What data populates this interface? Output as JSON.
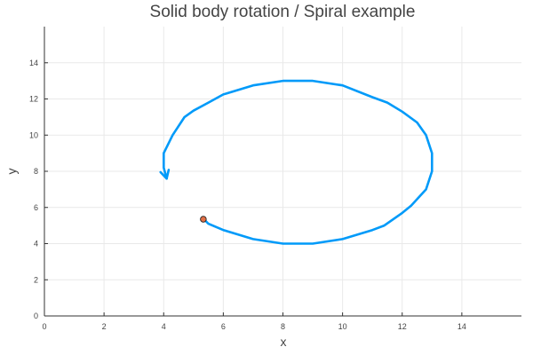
{
  "chart_data": {
    "type": "line",
    "title": "Solid body rotation / Spiral example",
    "xlabel": "x",
    "ylabel": "y",
    "xlim": [
      0,
      16
    ],
    "ylim": [
      0,
      16
    ],
    "xticks": [
      0,
      2,
      4,
      6,
      8,
      10,
      12,
      14
    ],
    "yticks": [
      0,
      2,
      4,
      6,
      8,
      10,
      12,
      14
    ],
    "grid": true,
    "series": [
      {
        "color": "#009af9",
        "x": [
          5.35,
          5.5,
          6.0,
          7.0,
          8.0,
          9.0,
          10.0,
          11.0,
          11.4,
          12.0,
          12.3,
          12.8,
          13.0,
          13.0,
          12.8,
          12.5,
          12.0,
          11.5,
          11.0,
          10.0,
          9.0,
          8.0,
          7.0,
          6.0,
          5.5,
          5.0,
          4.7,
          4.3,
          4.0,
          4.0,
          4.1
        ],
        "y": [
          5.35,
          5.1,
          4.75,
          4.25,
          4.0,
          4.0,
          4.25,
          4.75,
          5.0,
          5.7,
          6.1,
          7.0,
          8.0,
          9.0,
          10.0,
          10.7,
          11.3,
          11.8,
          12.1,
          12.75,
          13.0,
          13.0,
          12.75,
          12.25,
          11.8,
          11.35,
          11.0,
          10.0,
          9.0,
          8.2,
          7.6
        ],
        "arrow_end": true
      }
    ],
    "markers": [
      {
        "x": 5.33,
        "y": 5.35,
        "color": "#e26f46"
      }
    ]
  }
}
